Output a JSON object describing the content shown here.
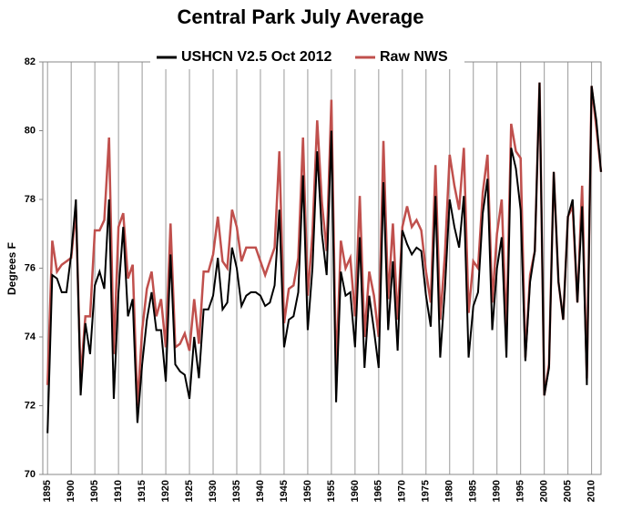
{
  "chart_data": {
    "type": "line",
    "title": "Central Park July Average",
    "y_label": "Degrees F",
    "x": [
      1895,
      1896,
      1897,
      1898,
      1899,
      1900,
      1901,
      1902,
      1903,
      1904,
      1905,
      1906,
      1907,
      1908,
      1909,
      1910,
      1911,
      1912,
      1913,
      1914,
      1915,
      1916,
      1917,
      1918,
      1919,
      1920,
      1921,
      1922,
      1923,
      1924,
      1925,
      1926,
      1927,
      1928,
      1929,
      1930,
      1931,
      1932,
      1933,
      1934,
      1935,
      1936,
      1937,
      1938,
      1939,
      1940,
      1941,
      1942,
      1943,
      1944,
      1945,
      1946,
      1947,
      1948,
      1949,
      1950,
      1951,
      1952,
      1953,
      1954,
      1955,
      1956,
      1957,
      1958,
      1959,
      1960,
      1961,
      1962,
      1963,
      1964,
      1965,
      1966,
      1967,
      1968,
      1969,
      1970,
      1971,
      1972,
      1973,
      1974,
      1975,
      1976,
      1977,
      1978,
      1979,
      1980,
      1981,
      1982,
      1983,
      1984,
      1985,
      1986,
      1987,
      1988,
      1989,
      1990,
      1991,
      1992,
      1993,
      1994,
      1995,
      1996,
      1997,
      1998,
      1999,
      2000,
      2001,
      2002,
      2003,
      2004,
      2005,
      2006,
      2007,
      2008,
      2009,
      2010,
      2011,
      2012
    ],
    "series": [
      {
        "name": "USHCN V2.5 Oct 2012",
        "color": "#000000",
        "values": [
          71.2,
          75.8,
          75.7,
          75.3,
          75.3,
          76.4,
          78.0,
          72.3,
          74.4,
          73.5,
          75.5,
          75.9,
          75.4,
          78.0,
          72.2,
          75.3,
          77.2,
          74.6,
          75.1,
          71.5,
          73.2,
          74.5,
          75.3,
          74.2,
          74.2,
          72.7,
          76.4,
          73.2,
          73.0,
          72.9,
          72.2,
          74.0,
          72.8,
          74.8,
          74.8,
          75.2,
          76.3,
          74.8,
          75.0,
          76.6,
          76.0,
          74.9,
          75.2,
          75.3,
          75.3,
          75.2,
          74.9,
          75.0,
          75.5,
          77.7,
          73.7,
          74.5,
          74.6,
          75.3,
          78.7,
          74.2,
          76.0,
          79.4,
          77.0,
          75.8,
          80.0,
          72.1,
          75.9,
          75.2,
          75.3,
          73.7,
          76.9,
          73.1,
          75.2,
          74.2,
          73.1,
          78.5,
          74.2,
          76.2,
          73.6,
          77.1,
          76.7,
          76.4,
          76.6,
          76.5,
          75.2,
          74.3,
          78.1,
          73.4,
          75.4,
          78.0,
          77.2,
          76.6,
          78.1,
          73.4,
          74.9,
          75.3,
          77.6,
          78.6,
          74.2,
          76.0,
          76.9,
          73.4,
          79.5,
          78.9,
          77.7,
          73.3,
          75.6,
          76.5,
          81.4,
          72.3,
          73.1,
          78.8,
          75.6,
          74.5,
          77.5,
          78.0,
          75.0,
          77.8,
          72.6,
          81.3,
          80.3,
          78.8
        ]
      },
      {
        "name": "Raw NWS",
        "color": "#c0504d",
        "values": [
          72.6,
          76.8,
          75.9,
          76.1,
          76.2,
          76.3,
          77.7,
          72.8,
          74.6,
          74.6,
          77.1,
          77.1,
          77.4,
          79.8,
          73.5,
          77.2,
          77.6,
          75.7,
          76.1,
          72.0,
          74.2,
          75.4,
          75.9,
          74.6,
          75.1,
          73.7,
          77.3,
          73.7,
          73.8,
          74.1,
          73.6,
          75.1,
          73.8,
          75.9,
          75.9,
          76.4,
          77.5,
          76.2,
          76.0,
          77.7,
          77.2,
          76.2,
          76.6,
          76.6,
          76.6,
          76.2,
          75.8,
          76.2,
          76.6,
          79.4,
          74.4,
          75.4,
          75.5,
          76.3,
          79.8,
          75.2,
          77.0,
          80.3,
          77.9,
          76.5,
          80.9,
          72.9,
          76.8,
          76.0,
          76.3,
          74.6,
          78.1,
          74.0,
          75.9,
          75.2,
          74.0,
          79.7,
          75.1,
          77.3,
          74.5,
          77.2,
          77.8,
          77.2,
          77.4,
          77.1,
          75.9,
          75.0,
          79.0,
          74.5,
          76.4,
          79.3,
          78.4,
          77.7,
          79.5,
          74.7,
          76.2,
          76.0,
          78.2,
          79.3,
          75.0,
          77.0,
          78.0,
          74.1,
          80.2,
          79.4,
          79.2,
          73.4,
          75.8,
          76.5,
          81.4,
          72.3,
          73.2,
          78.8,
          75.6,
          74.5,
          77.5,
          77.8,
          75.0,
          78.4,
          72.8,
          81.3,
          80.1,
          78.8
        ]
      }
    ],
    "xlim": [
      1894,
      2012
    ],
    "xticks": [
      1895,
      1900,
      1905,
      1910,
      1915,
      1920,
      1925,
      1930,
      1935,
      1940,
      1945,
      1950,
      1955,
      1960,
      1965,
      1970,
      1975,
      1980,
      1985,
      1990,
      1995,
      2000,
      2005,
      2010
    ],
    "ylim": [
      70,
      82
    ],
    "yticks": [
      70,
      72,
      74,
      76,
      78,
      80,
      82
    ],
    "grid": true
  }
}
